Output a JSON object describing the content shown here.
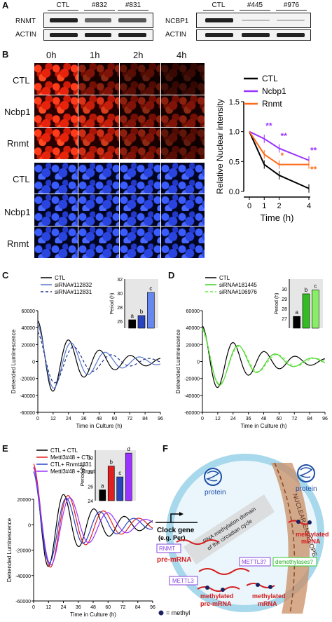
{
  "panels": {
    "A": "A",
    "B": "B",
    "C": "C",
    "D": "D",
    "E": "E",
    "F": "F"
  },
  "panelA": {
    "left": {
      "lanes": [
        "CTL",
        "#832",
        "#831"
      ],
      "rows": [
        "RNMT",
        "ACTIN"
      ]
    },
    "right": {
      "lanes": [
        "CTL",
        "#445",
        "#976"
      ],
      "rows": [
        "NCBP1",
        "ACTIN"
      ]
    }
  },
  "panelB": {
    "timepoints": [
      "0h",
      "1h",
      "2h",
      "4h"
    ],
    "red_rows": [
      "CTL",
      "Ncbp1",
      "Rnmt"
    ],
    "blue_rows": [
      "CTL",
      "Ncbp1",
      "Rnmt"
    ]
  },
  "chart_data": [
    {
      "id": "B-line",
      "type": "line",
      "ylabel": "Relative Nuclear intensity",
      "xlabel": "Time (h)",
      "x": [
        0,
        1,
        2,
        4
      ],
      "xticks": [
        "0",
        "1",
        "2",
        "4"
      ],
      "ylim": [
        0,
        1.5
      ],
      "yticks": [
        "0.0",
        "0.5",
        "1.0",
        "1.5"
      ],
      "series": [
        {
          "name": "CTL",
          "color": "#000000",
          "values": [
            1.0,
            0.45,
            0.27,
            0.05
          ]
        },
        {
          "name": "Ncbp1",
          "color": "#9933ff",
          "values": [
            1.0,
            0.88,
            0.72,
            0.52
          ]
        },
        {
          "name": "Rnmt",
          "color": "#ff6a1a",
          "values": [
            1.0,
            0.62,
            0.45,
            0.45
          ]
        }
      ],
      "annotations": [
        {
          "text": "**",
          "color": "#9933ff",
          "x": 1,
          "y": 1.05
        },
        {
          "text": "**",
          "color": "#9933ff",
          "x": 2,
          "y": 0.88
        },
        {
          "text": "**",
          "color": "#9933ff",
          "x": 4,
          "y": 0.64
        },
        {
          "text": "*",
          "color": "#ff6a1a",
          "x": 2,
          "y": 0.55
        },
        {
          "text": "**",
          "color": "#ff6a1a",
          "x": 4,
          "y": 0.32
        }
      ]
    },
    {
      "id": "C",
      "type": "line",
      "xlabel": "Time in Culture (h)",
      "ylabel": "Detrended Luminescence",
      "xlim": [
        0,
        96
      ],
      "xticks": [
        0,
        12,
        24,
        36,
        48,
        60,
        72,
        84,
        96
      ],
      "ylim": [
        -60000,
        60000
      ],
      "yticks": [
        -60000,
        -40000,
        -20000,
        0,
        20000,
        40000,
        60000
      ],
      "series": [
        {
          "name": "CTL",
          "color": "#000000",
          "dash": "",
          "period": 24.3,
          "amp": 48000,
          "phase": 0
        },
        {
          "name": "siRNA#112832",
          "color": "#5577cc",
          "dash": "",
          "period": 26.8,
          "amp": 44000,
          "phase": 0.1
        },
        {
          "name": "siRNA#112831",
          "color": "#223388",
          "dash": "4,3",
          "period": 29.5,
          "amp": 36000,
          "phase": 0.2
        }
      ],
      "inset": {
        "ylabel": "Period (h)",
        "ylim": [
          25,
          32
        ],
        "yticks": [
          26,
          28,
          30,
          32
        ],
        "values": [
          26.2,
          26.8,
          30.1
        ],
        "letters": [
          "a",
          "b",
          "c"
        ],
        "colors": [
          "#000000",
          "#2a44c0",
          "#6688ee"
        ]
      }
    },
    {
      "id": "D",
      "type": "line",
      "xlabel": "Time in Culture (h)",
      "ylabel": "Detrended Luminescence",
      "xlim": [
        0,
        96
      ],
      "xticks": [
        0,
        12,
        24,
        36,
        48,
        60,
        72,
        84,
        96
      ],
      "ylim": [
        -60000,
        60000
      ],
      "yticks": [
        -60000,
        -40000,
        -20000,
        0,
        20000,
        40000,
        60000
      ],
      "series": [
        {
          "name": "CTL",
          "color": "#000000",
          "dash": "",
          "period": 24.3,
          "amp": 42000,
          "phase": 0
        },
        {
          "name": "siRNA#181445",
          "color": "#44cc22",
          "dash": "",
          "period": 29.0,
          "amp": 40000,
          "phase": 0.1
        },
        {
          "name": "siRNA#106976",
          "color": "#66ee44",
          "dash": "4,3",
          "period": 29.8,
          "amp": 38000,
          "phase": 0.15
        }
      ],
      "inset": {
        "ylabel": "Period (h)",
        "ylim": [
          26,
          31
        ],
        "yticks": [
          27,
          28,
          29,
          30
        ],
        "values": [
          27.2,
          29.5,
          29.9
        ],
        "letters": [
          "a",
          "b",
          "c"
        ],
        "colors": [
          "#000000",
          "#33bb22",
          "#88ee66"
        ]
      }
    },
    {
      "id": "E",
      "type": "line",
      "xlabel": "Time in Culture (h)",
      "ylabel": "Detrended Luminescence",
      "xlim": [
        0,
        96
      ],
      "xticks": [
        0,
        12,
        24,
        36,
        48,
        60,
        72,
        84,
        96
      ],
      "ylim": [
        -60000,
        20000
      ],
      "yticks": [
        -60000,
        -40000,
        -20000,
        0,
        20000
      ],
      "series": [
        {
          "name": "CTL + CTL",
          "color": "#000000",
          "dash": "",
          "period": 24.5,
          "amp": 45000,
          "phase": 0
        },
        {
          "name": "Mettl3#48 + CTL",
          "color": "#e02020",
          "dash": "",
          "period": 28.5,
          "amp": 48000,
          "phase": 0.05
        },
        {
          "name": "CTL+ Rnmt#831",
          "color": "#2a44c0",
          "dash": "",
          "period": 27.2,
          "amp": 42000,
          "phase": 0.1
        },
        {
          "name": "Mettl3#48 + Rnmt#831",
          "color": "#9933ff",
          "dash": "",
          "period": 30.5,
          "amp": 46000,
          "phase": 0.15
        }
      ],
      "inset": {
        "ylabel": "Period (h)",
        "ylim": [
          24,
          31
        ],
        "yticks": [
          24,
          26,
          28,
          30
        ],
        "values": [
          25.5,
          28.8,
          27.3,
          30.6
        ],
        "letters": [
          "a",
          "b",
          "c",
          "d"
        ],
        "colors": [
          "#000000",
          "#e02020",
          "#2a44c0",
          "#9933ff"
        ]
      }
    }
  ],
  "panelF": {
    "protein_top": "protein",
    "protein_right": "protein",
    "clock_gene": "Clock gene",
    "clock_gene_eg": "(e.g. Per)",
    "rnmt": "RNMT",
    "pre_mrna": "pre-mRNA",
    "mettl3": "METTL3",
    "mettl3_q": "METTL3?",
    "demethylases": "demethylases?",
    "methylated_mrna_top": "methylated",
    "methylated_mrna_top2": "mRNA",
    "methylated_pre": "methylated",
    "methylated_pre2": "pre-mRNA",
    "methylated_mrna_bot": "methylated",
    "methylated_mrna_bot2": "mRNA",
    "domain1": "RNA methylation domain",
    "domain2": "of the circadian cycle",
    "envelope": "NUCLEAR ENVELOPE",
    "legend": "= methyl"
  }
}
